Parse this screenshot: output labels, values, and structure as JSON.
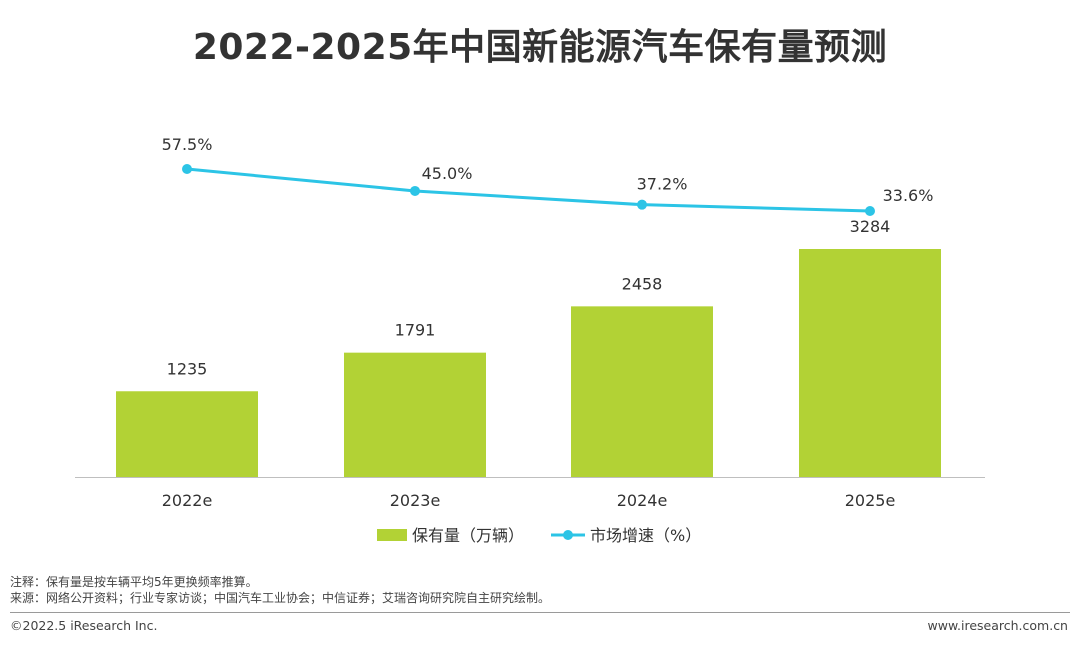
{
  "title": "2022-2025年中国新能源汽车保有量预测",
  "colors": {
    "bar": "#b2d235",
    "line": "#2cc4e6",
    "axis": "#bfbfbf",
    "text": "#333333"
  },
  "chart_data": {
    "type": "bar",
    "categories": [
      "2022e",
      "2023e",
      "2024e",
      "2025e"
    ],
    "series": [
      {
        "name": "保有量（万辆）",
        "type": "bar",
        "values": [
          1235,
          1791,
          2458,
          3284
        ],
        "labels": [
          "1235",
          "1791",
          "2458",
          "3284"
        ]
      },
      {
        "name": "市场增速（%）",
        "type": "line",
        "values": [
          57.5,
          45.0,
          37.2,
          33.6
        ],
        "labels": [
          "57.5%",
          "45.0%",
          "37.2%",
          "33.6%"
        ]
      }
    ],
    "title": "2022-2025年中国新能源汽车保有量预测",
    "xlabel": "",
    "ylabel": "",
    "ylim": [
      0,
      3284
    ],
    "y2lim": [
      0,
      70
    ],
    "legend": "bottom-center",
    "grid": false
  },
  "notes": {
    "note": "注释：保有量是按车辆平均5年更换频率推算。",
    "source": "来源：网络公开资料；行业专家访谈；中国汽车工业协会；中信证券；艾瑞咨询研究院自主研究绘制。"
  },
  "footer": {
    "copyright": "©2022.5 iResearch Inc.",
    "website": "www.iresearch.com.cn"
  }
}
